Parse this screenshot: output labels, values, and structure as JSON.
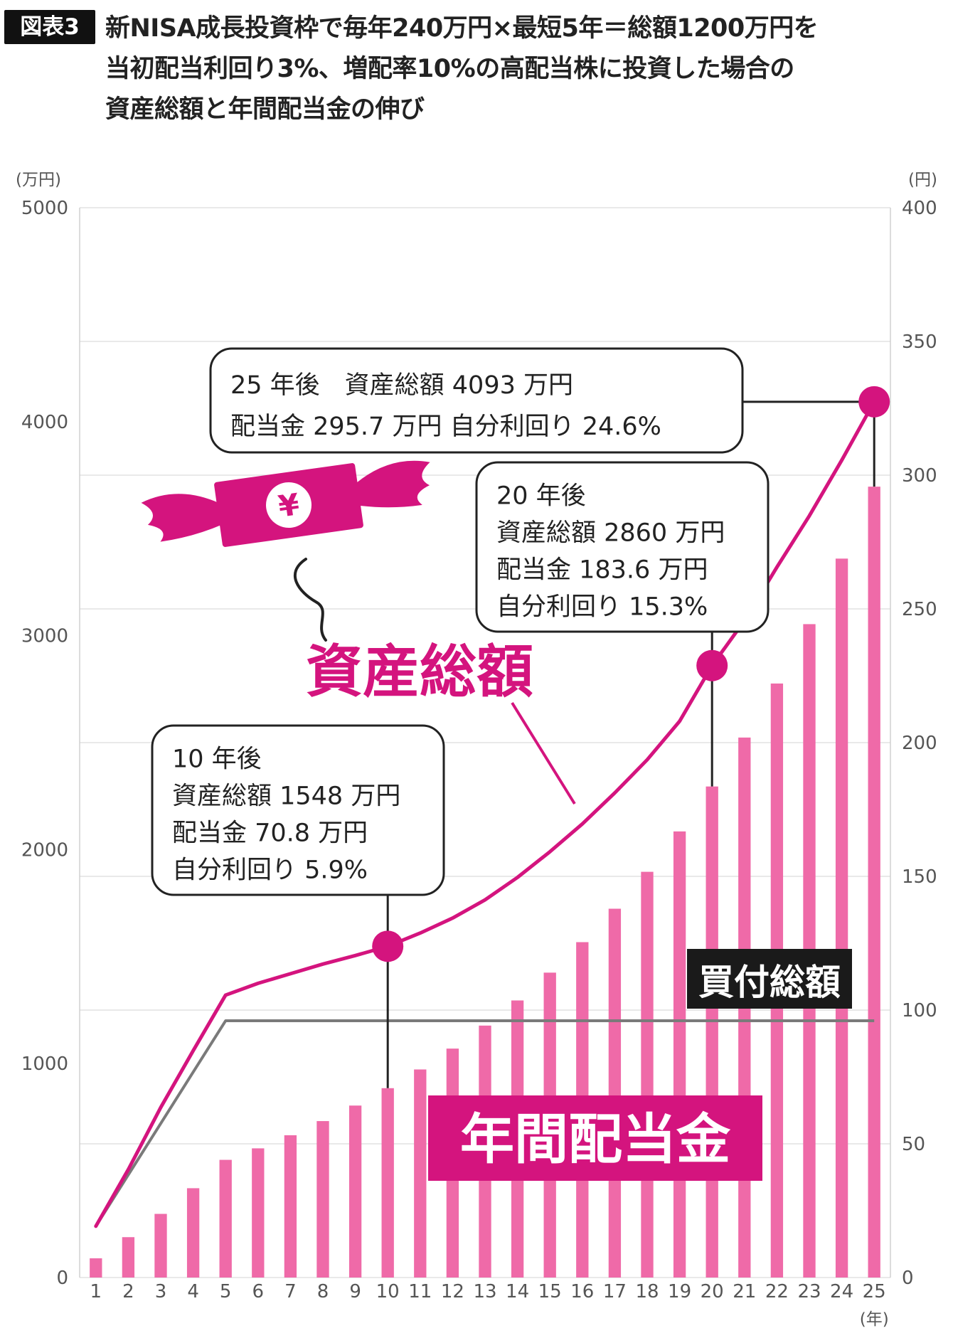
{
  "header": {
    "badge": "図表3",
    "title_lines": [
      "新NISA成長投資枠で毎年240万円×最短5年＝総額1200万円を",
      "当初配当利回り3%、増配率10%の高配当株に投資した場合の",
      "資産総額と年間配当金の伸び"
    ]
  },
  "colors": {
    "asset_line": "#d4147e",
    "dividend_bar": "#ef6aa8",
    "purchase_line": "#7a7a7a",
    "label_magenta": "#d4147e",
    "label_black": "#1a1a1a"
  },
  "icons": [
    "flying-money-icon",
    "yen-icon"
  ],
  "chart_data": {
    "type": "bar",
    "x": [
      1,
      2,
      3,
      4,
      5,
      6,
      7,
      8,
      9,
      10,
      11,
      12,
      13,
      14,
      15,
      16,
      17,
      18,
      19,
      20,
      21,
      22,
      23,
      24,
      25
    ],
    "xunit": "(年)",
    "y_left": {
      "unit": "(万円)",
      "range": [
        0,
        5000
      ],
      "ticks": [
        0,
        1000,
        2000,
        3000,
        4000,
        5000
      ]
    },
    "y_right": {
      "unit": "(円)",
      "range": [
        0,
        400
      ],
      "ticks": [
        0,
        50,
        100,
        150,
        200,
        250,
        300,
        350,
        400
      ]
    },
    "grid": true,
    "series": [
      {
        "name": "年間配当金",
        "type": "bar",
        "axis": "right",
        "values": [
          7.2,
          15.1,
          23.8,
          33.4,
          44.0,
          48.3,
          53.2,
          58.5,
          64.3,
          70.8,
          77.8,
          85.6,
          94.2,
          103.6,
          114.0,
          125.4,
          137.9,
          151.7,
          166.8,
          183.6,
          201.9,
          222.1,
          244.3,
          268.8,
          295.7
        ]
      },
      {
        "name": "資産総額",
        "type": "line",
        "axis": "left",
        "values": [
          240,
          505,
          795,
          1060,
          1320,
          1375,
          1420,
          1465,
          1505,
          1548,
          1610,
          1680,
          1765,
          1870,
          1990,
          2120,
          2265,
          2420,
          2600,
          2860,
          3070,
          3320,
          3560,
          3820,
          4093
        ]
      },
      {
        "name": "買付総額",
        "type": "line",
        "axis": "left",
        "values": [
          240,
          480,
          720,
          960,
          1200,
          1200,
          1200,
          1200,
          1200,
          1200,
          1200,
          1200,
          1200,
          1200,
          1200,
          1200,
          1200,
          1200,
          1200,
          1200,
          1200,
          1200,
          1200,
          1200,
          1200
        ]
      }
    ],
    "labels": {
      "asset": "資産総額",
      "purchase": "買付総額",
      "dividend": "年間配当金"
    },
    "annotations": [
      {
        "year": 10,
        "lines": [
          "10 年後",
          "資産総額 1548 万円",
          "配当金 70.8 万円",
          "自分利回り 5.9%"
        ]
      },
      {
        "year": 20,
        "lines": [
          "20 年後",
          "資産総額 2860 万円",
          "配当金 183.6 万円",
          "自分利回り 15.3%"
        ]
      },
      {
        "year": 25,
        "lines": [
          "25 年後　資産総額 4093 万円",
          "配当金 295.7 万円 自分利回り 24.6%"
        ]
      }
    ]
  }
}
